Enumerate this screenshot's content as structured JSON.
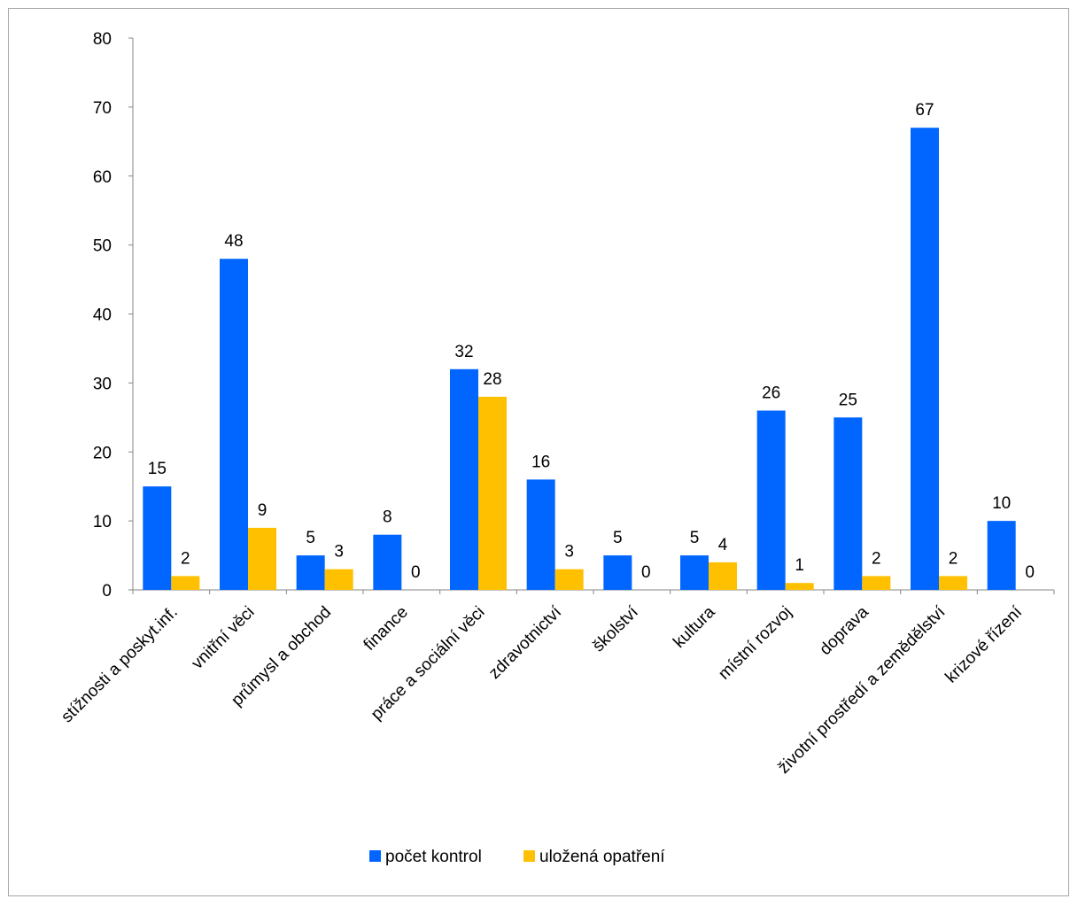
{
  "chart_data": {
    "type": "bar",
    "title": "",
    "xlabel": "",
    "ylabel": "",
    "ylim": [
      0,
      80
    ],
    "yticks": [
      0,
      10,
      20,
      30,
      40,
      50,
      60,
      70,
      80
    ],
    "grid": false,
    "legend_position": "bottom",
    "categories": [
      "stížnosti a poskyt.inf.",
      "vnitřní věci",
      "průmysl a obchod",
      "finance",
      "práce a sociální věci",
      "zdravotnictví",
      "školství",
      "kultura",
      "místní rozvoj",
      "doprava",
      "životní prostředí a zemědělství",
      "krizové řízení"
    ],
    "series": [
      {
        "name": "počet kontrol",
        "color": "#0066ff",
        "values": [
          15,
          48,
          5,
          8,
          32,
          16,
          5,
          5,
          26,
          25,
          67,
          10
        ]
      },
      {
        "name": "uložená opatření",
        "color": "#ffc000",
        "values": [
          2,
          9,
          3,
          0,
          28,
          3,
          0,
          4,
          1,
          2,
          2,
          0
        ]
      }
    ]
  }
}
